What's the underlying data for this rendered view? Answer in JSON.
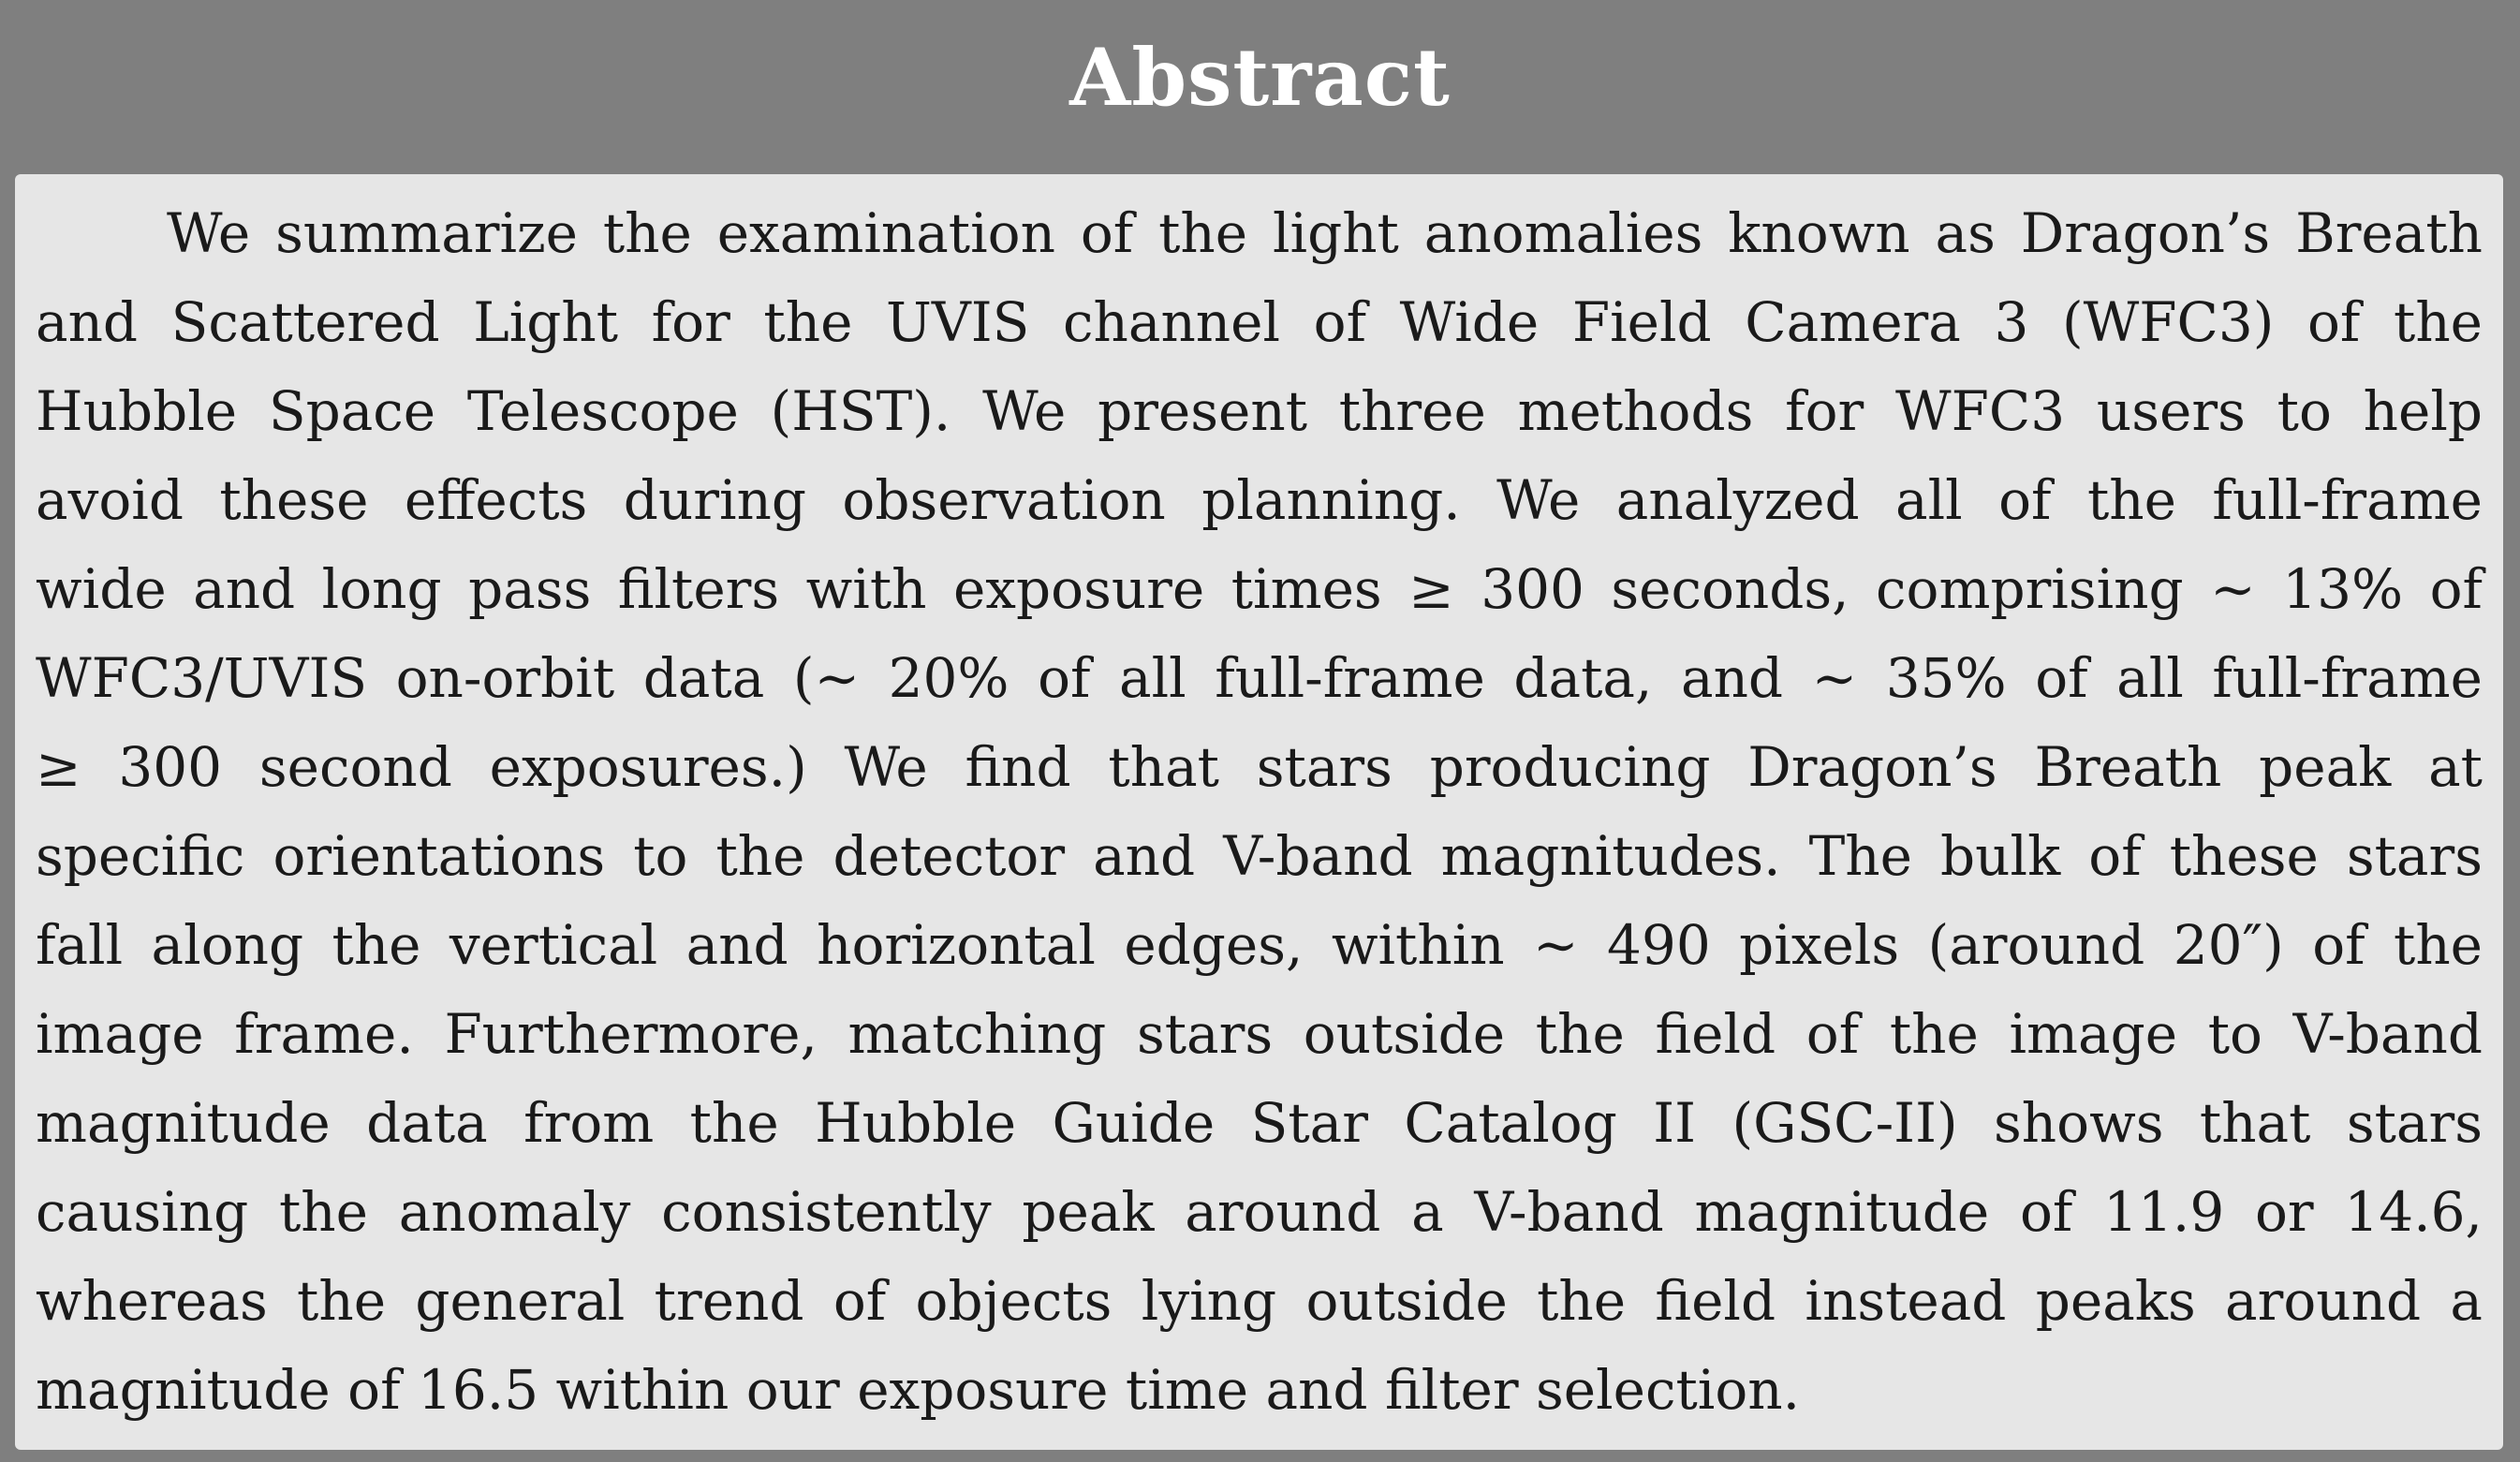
{
  "heading": "Abstract",
  "abstract_lines": [
    "We summarize the examination of the light anomalies known as Dragon’s Breath",
    "and Scattered Light for the UVIS channel of Wide Field Camera 3 (WFC3) of the",
    "Hubble Space Telescope (HST). We present three methods for WFC3 users to help",
    "avoid these effects during observation planning.  We analyzed all of the full-frame",
    "wide and long pass filters with exposure times ≥ 300 seconds, comprising ∼ 13% of",
    "WFC3/UVIS on-orbit data (∼ 20% of all full-frame data, and ∼ 35% of all full-frame",
    "≥ 300 second exposures.)  We find that stars producing Dragon’s Breath peak at",
    "specific orientations to the detector and V-band magnitudes. The bulk of these stars",
    "fall along the vertical and horizontal edges, within ∼ 490 pixels (around 20″) of the",
    "image frame.  Furthermore, matching stars outside the field of the image to V-band",
    "magnitude data from the Hubble Guide Star Catalog II (GSC-II) shows that stars",
    "causing the anomaly consistently peak around a V-band magnitude of 11.9 or 14.6,",
    "whereas the general trend of objects lying outside the field instead peaks around a",
    "magnitude of 16.5 within our exposure time and filter selection."
  ]
}
